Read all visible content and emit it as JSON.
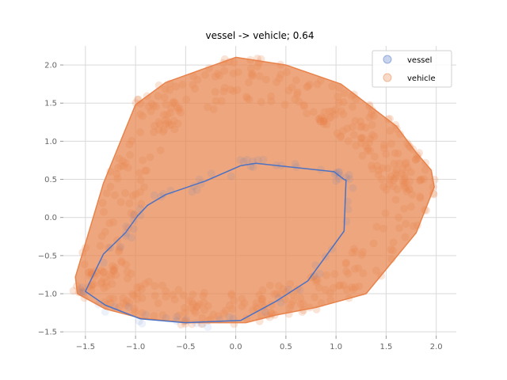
{
  "chart_data": {
    "type": "scatter",
    "title": "vessel -> vehicle; 0.64",
    "xlabel": "",
    "ylabel": "",
    "xlim": [
      -1.72,
      2.2
    ],
    "ylim": [
      -1.55,
      2.25
    ],
    "xticks": [
      -1.5,
      -1.0,
      -0.5,
      0.0,
      0.5,
      1.0,
      1.5,
      2.0
    ],
    "xtick_labels": [
      "−1.5",
      "−1.0",
      "−0.5",
      "0.0",
      "0.5",
      "1.0",
      "1.5",
      "2.0"
    ],
    "yticks": [
      -1.5,
      -1.0,
      -0.5,
      0.0,
      0.5,
      1.0,
      1.5,
      2.0
    ],
    "ytick_labels": [
      "−1.5",
      "−1.0",
      "−0.5",
      "0.0",
      "0.5",
      "1.0",
      "1.5",
      "2.0"
    ],
    "grid": true,
    "legend_position": "top-right",
    "series": [
      {
        "name": "vessel",
        "color": "#4c72c4",
        "hull": [
          [
            -1.5,
            -0.97
          ],
          [
            -1.32,
            -0.48
          ],
          [
            -1.1,
            -0.2
          ],
          [
            -0.98,
            0.02
          ],
          [
            -0.88,
            0.16
          ],
          [
            -0.7,
            0.3
          ],
          [
            -0.3,
            0.48
          ],
          [
            0.05,
            0.68
          ],
          [
            0.2,
            0.71
          ],
          [
            0.98,
            0.6
          ],
          [
            1.08,
            0.5
          ],
          [
            1.1,
            0.49
          ],
          [
            1.08,
            -0.18
          ],
          [
            0.72,
            -0.83
          ],
          [
            0.4,
            -1.1
          ],
          [
            0.05,
            -1.35
          ],
          [
            -0.5,
            -1.38
          ],
          [
            -0.95,
            -1.33
          ],
          [
            -1.3,
            -1.15
          ],
          [
            -1.5,
            -0.97
          ]
        ]
      },
      {
        "name": "vehicle",
        "color": "#e8834c",
        "hull": [
          [
            -1.6,
            -0.78
          ],
          [
            -1.58,
            -1.0
          ],
          [
            -1.3,
            -1.2
          ],
          [
            -0.95,
            -1.32
          ],
          [
            -0.5,
            -1.38
          ],
          [
            0.1,
            -1.38
          ],
          [
            0.4,
            -1.28
          ],
          [
            0.8,
            -1.18
          ],
          [
            1.3,
            -1.0
          ],
          [
            1.8,
            -0.2
          ],
          [
            1.98,
            0.4
          ],
          [
            1.95,
            0.62
          ],
          [
            1.8,
            0.85
          ],
          [
            1.6,
            1.2
          ],
          [
            1.3,
            1.5
          ],
          [
            1.05,
            1.75
          ],
          [
            0.5,
            2.0
          ],
          [
            0.0,
            2.1
          ],
          [
            -0.7,
            1.77
          ],
          [
            -1.0,
            1.48
          ],
          [
            -1.32,
            0.45
          ],
          [
            -1.6,
            -0.78
          ]
        ]
      }
    ]
  }
}
